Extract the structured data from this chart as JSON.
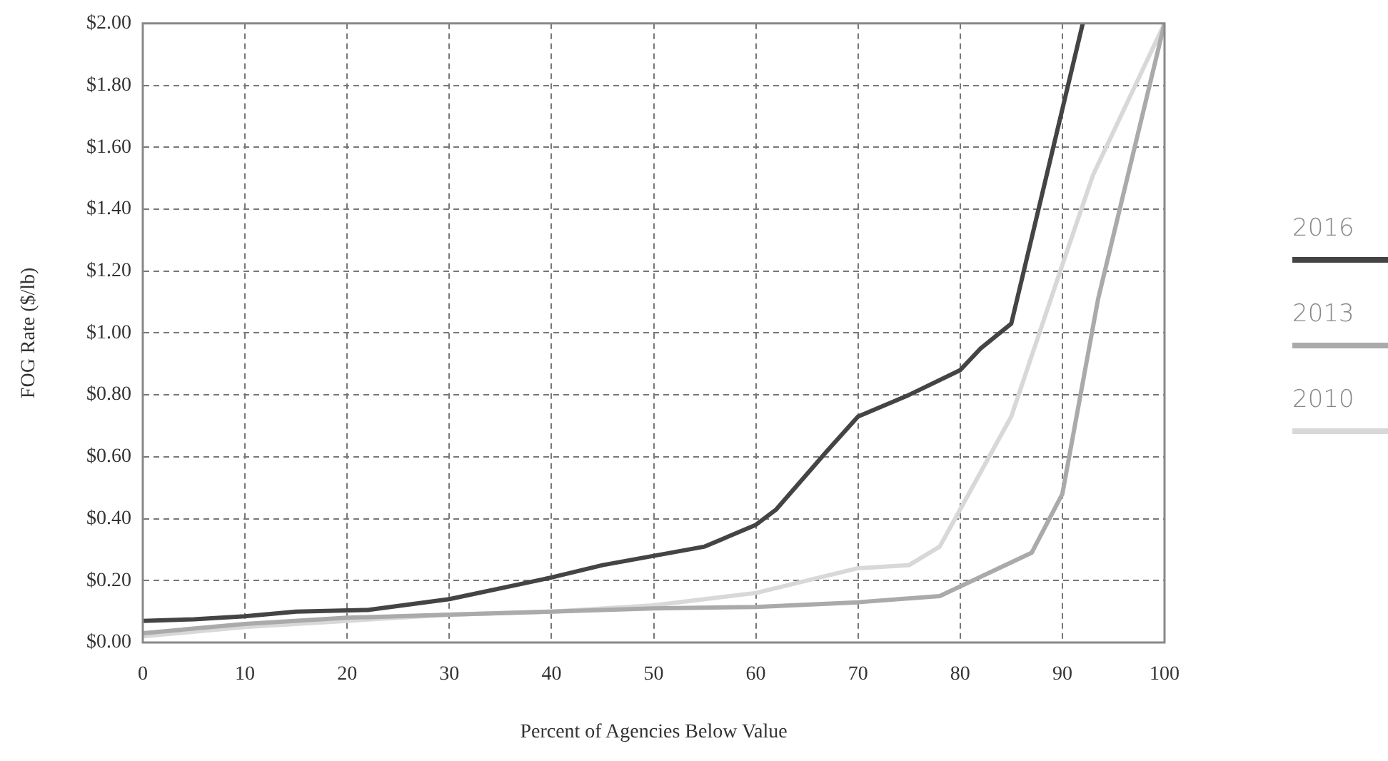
{
  "chart_data": {
    "type": "line",
    "xlabel": "Percent of Agencies Below Value",
    "ylabel": "FOG Rate ($/lb)",
    "xlim": [
      0,
      100
    ],
    "xticks": [
      0,
      10,
      20,
      30,
      40,
      50,
      60,
      70,
      80,
      90,
      100
    ],
    "ylim": [
      0,
      2
    ],
    "yticks": [
      {
        "value": 0,
        "label": "$0.00"
      },
      {
        "value": 0.2,
        "label": "$0.20"
      },
      {
        "value": 0.4,
        "label": "$0.40"
      },
      {
        "value": 0.6,
        "label": "$0.60"
      },
      {
        "value": 0.8,
        "label": "$0.80"
      },
      {
        "value": 1,
        "label": "$1.00"
      },
      {
        "value": 1.2,
        "label": "$1.20"
      },
      {
        "value": 1.4,
        "label": "$1.40"
      },
      {
        "value": 1.6,
        "label": "$1.60"
      },
      {
        "value": 1.8,
        "label": "$1.80"
      },
      {
        "value": 2,
        "label": "$2.00"
      }
    ],
    "grid": true,
    "legend": "right",
    "marker": "none",
    "line_style": "solid",
    "series": [
      {
        "name": "2016",
        "color": "#444444",
        "x": [
          0,
          5,
          10,
          15,
          22,
          30,
          40,
          45,
          50,
          55,
          60,
          62,
          67,
          70,
          75,
          80,
          82,
          85,
          92
        ],
        "values": [
          0.07,
          0.075,
          0.085,
          0.1,
          0.105,
          0.14,
          0.21,
          0.25,
          0.28,
          0.31,
          0.38,
          0.43,
          0.62,
          0.73,
          0.8,
          0.88,
          0.95,
          1.03,
          2.0
        ]
      },
      {
        "name": "2013",
        "color": "#aaaaaa",
        "x": [
          0,
          10,
          20,
          30,
          40,
          50,
          60,
          70,
          78,
          87,
          90,
          93.5,
          100
        ],
        "values": [
          0.03,
          0.06,
          0.08,
          0.09,
          0.1,
          0.11,
          0.115,
          0.13,
          0.15,
          0.29,
          0.48,
          1.11,
          2.0
        ]
      },
      {
        "name": "2010",
        "color": "#d8d8d8",
        "x": [
          0,
          10,
          20,
          30,
          40,
          50,
          60,
          70,
          75,
          78,
          85,
          90,
          93,
          100
        ],
        "values": [
          0.02,
          0.05,
          0.07,
          0.09,
          0.1,
          0.12,
          0.16,
          0.24,
          0.25,
          0.31,
          0.73,
          1.22,
          1.51,
          2.0
        ]
      }
    ]
  }
}
